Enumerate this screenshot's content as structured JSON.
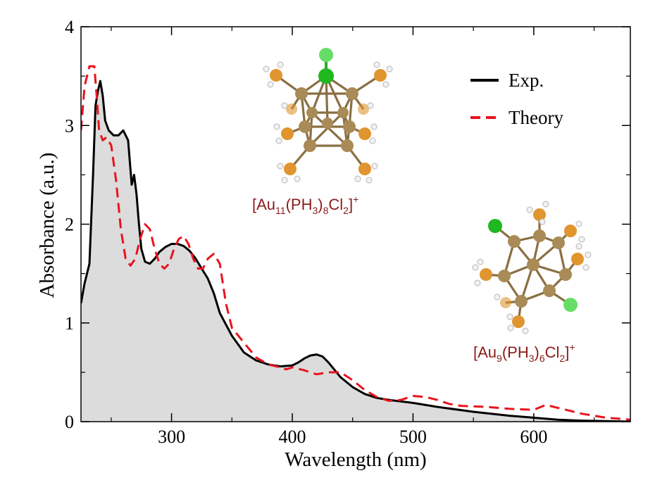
{
  "chart_data": {
    "type": "line",
    "xlabel": "Wavelength (nm)",
    "ylabel": "Absorbance (a.u.)",
    "xlim": [
      225,
      680
    ],
    "ylim": [
      0,
      4
    ],
    "xticks": [
      300,
      400,
      500,
      600
    ],
    "yticks": [
      0,
      1,
      2,
      3,
      4
    ],
    "legend_position": "top-right",
    "series": [
      {
        "name": "Exp.",
        "style": "solid",
        "color": "#000000",
        "fill": "#dcdcdc",
        "x": [
          225,
          228,
          232,
          235,
          237,
          239,
          241,
          243,
          245,
          248,
          252,
          256,
          260,
          264,
          267,
          269,
          271,
          273,
          275,
          278,
          282,
          286,
          290,
          295,
          300,
          305,
          310,
          315,
          320,
          325,
          330,
          335,
          340,
          350,
          360,
          370,
          380,
          390,
          400,
          405,
          410,
          415,
          420,
          425,
          430,
          440,
          450,
          460,
          470,
          480,
          500,
          520,
          550,
          580,
          600,
          620,
          640,
          660,
          680
        ],
        "y": [
          1.2,
          1.4,
          1.6,
          2.5,
          3.2,
          3.35,
          3.45,
          3.3,
          3.05,
          2.95,
          2.9,
          2.9,
          2.95,
          2.85,
          2.4,
          2.5,
          2.3,
          2.0,
          1.75,
          1.62,
          1.6,
          1.65,
          1.72,
          1.77,
          1.8,
          1.8,
          1.78,
          1.73,
          1.65,
          1.55,
          1.45,
          1.3,
          1.1,
          0.87,
          0.7,
          0.62,
          0.58,
          0.56,
          0.57,
          0.6,
          0.64,
          0.67,
          0.68,
          0.66,
          0.6,
          0.45,
          0.35,
          0.28,
          0.24,
          0.22,
          0.19,
          0.15,
          0.1,
          0.06,
          0.04,
          0.02,
          0.01,
          0.005,
          0.0
        ]
      },
      {
        "name": "Theory",
        "style": "dashed",
        "color": "#e8141e",
        "x": [
          225,
          228,
          232,
          236,
          238,
          240,
          243,
          246,
          250,
          254,
          258,
          262,
          266,
          270,
          274,
          278,
          282,
          286,
          290,
          294,
          298,
          302,
          306,
          310,
          314,
          318,
          322,
          326,
          330,
          335,
          340,
          345,
          350,
          360,
          370,
          380,
          390,
          395,
          400,
          410,
          420,
          430,
          440,
          450,
          460,
          470,
          480,
          490,
          500,
          510,
          520,
          530,
          540,
          560,
          580,
          600,
          610,
          620,
          640,
          660,
          680
        ],
        "y": [
          2.95,
          3.4,
          3.6,
          3.6,
          3.3,
          2.95,
          2.85,
          2.88,
          2.8,
          2.45,
          1.95,
          1.65,
          1.58,
          1.65,
          1.85,
          2.0,
          1.95,
          1.75,
          1.6,
          1.55,
          1.6,
          1.75,
          1.85,
          1.88,
          1.8,
          1.65,
          1.55,
          1.55,
          1.65,
          1.7,
          1.6,
          1.2,
          0.95,
          0.8,
          0.65,
          0.58,
          0.55,
          0.53,
          0.55,
          0.52,
          0.48,
          0.5,
          0.5,
          0.42,
          0.32,
          0.25,
          0.21,
          0.22,
          0.26,
          0.25,
          0.22,
          0.18,
          0.16,
          0.15,
          0.13,
          0.12,
          0.17,
          0.14,
          0.08,
          0.04,
          0.02
        ]
      }
    ],
    "annotations": [
      {
        "id": "au11",
        "base": "[Au",
        "sub1": "11",
        "mid1": "(PH",
        "sub2": "3",
        "mid2": ")",
        "sub3": "8",
        "mid3": "Cl",
        "sub4": "2",
        "mid4": "]",
        "sup": "+",
        "color": "#8b1a1a"
      },
      {
        "id": "au9",
        "base": "[Au",
        "sub1": "9",
        "mid1": "(PH",
        "sub2": "3",
        "mid2": ")",
        "sub3": "6",
        "mid3": "Cl",
        "sub4": "2",
        "mid4": "]",
        "sup": "+",
        "color": "#8b1a1a"
      }
    ]
  },
  "molecule_colors": {
    "gold": "#a98b57",
    "phosphorus": "#e0952e",
    "chlorine": "#22bb22",
    "hydrogen": "#f2f2f2"
  }
}
